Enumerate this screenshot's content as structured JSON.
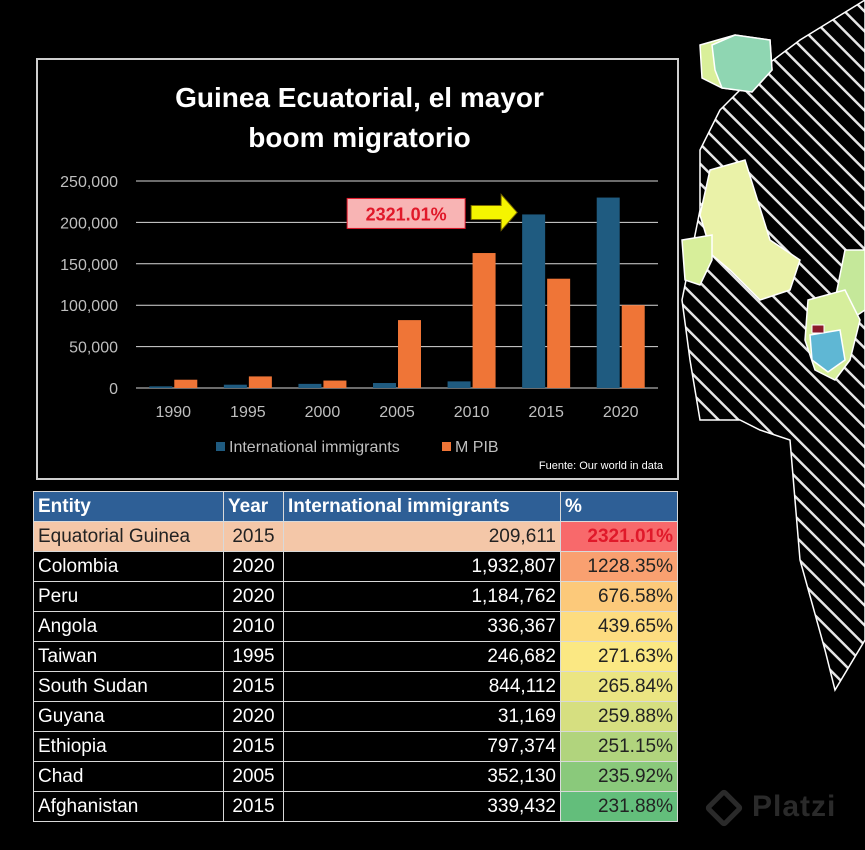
{
  "chart_data": {
    "type": "bar",
    "title": [
      "Guinea Ecuatorial, el mayor",
      "boom migratorio"
    ],
    "categories": [
      "1990",
      "1995",
      "2000",
      "2005",
      "2010",
      "2015",
      "2020"
    ],
    "series": [
      {
        "name": "International immigrants",
        "color": "#1f5b80",
        "values": [
          2000,
          4000,
          5000,
          6000,
          8000,
          209611,
          230000
        ]
      },
      {
        "name": "M PIB",
        "color": "#ef7537",
        "values": [
          10000,
          14000,
          9000,
          82000,
          163000,
          132000,
          100000
        ]
      }
    ],
    "ylim": [
      0,
      250000
    ],
    "yticks": [
      "0",
      "50,000",
      "100,000",
      "150,000",
      "200,000",
      "250,000"
    ],
    "grid": true,
    "legend_position": "bottom",
    "annotation": {
      "text": "2321.01%",
      "target_category": "2015",
      "bg_color": "#f8b4b4",
      "text_color": "#e0192a",
      "arrow_color": "#f5f500"
    },
    "source": "Fuente: Our world in data"
  },
  "table": {
    "headers": [
      "Entity",
      "Year",
      "International immigrants",
      "%"
    ],
    "rows": [
      {
        "entity": "Equatorial Guinea",
        "year": "2015",
        "immigrants": "209,611",
        "pct": "2321.01%",
        "pct_color": "#f8696b",
        "highlight": true
      },
      {
        "entity": "Colombia",
        "year": "2020",
        "immigrants": "1,932,807",
        "pct": "1228.35%",
        "pct_color": "#f9a070"
      },
      {
        "entity": "Peru",
        "year": "2020",
        "immigrants": "1,184,762",
        "pct": "676.58%",
        "pct_color": "#fcc97a"
      },
      {
        "entity": "Angola",
        "year": "2010",
        "immigrants": "336,367",
        "pct": "439.65%",
        "pct_color": "#fddc80"
      },
      {
        "entity": "Taiwan",
        "year": "1995",
        "immigrants": "246,682",
        "pct": "271.63%",
        "pct_color": "#fbe883"
      },
      {
        "entity": "South Sudan",
        "year": "2015",
        "immigrants": "844,112",
        "pct": "265.84%",
        "pct_color": "#ebe582"
      },
      {
        "entity": "Guyana",
        "year": "2020",
        "immigrants": "31,169",
        "pct": "259.88%",
        "pct_color": "#d6df80"
      },
      {
        "entity": "Ethiopia",
        "year": "2015",
        "immigrants": "797,374",
        "pct": "251.15%",
        "pct_color": "#b1d47d"
      },
      {
        "entity": "Chad",
        "year": "2005",
        "immigrants": "352,130",
        "pct": "235.92%",
        "pct_color": "#8ac97b"
      },
      {
        "entity": "Afghanistan",
        "year": "2015",
        "immigrants": "339,432",
        "pct": "231.88%",
        "pct_color": "#63be7b"
      }
    ]
  },
  "watermark": "Platzi"
}
